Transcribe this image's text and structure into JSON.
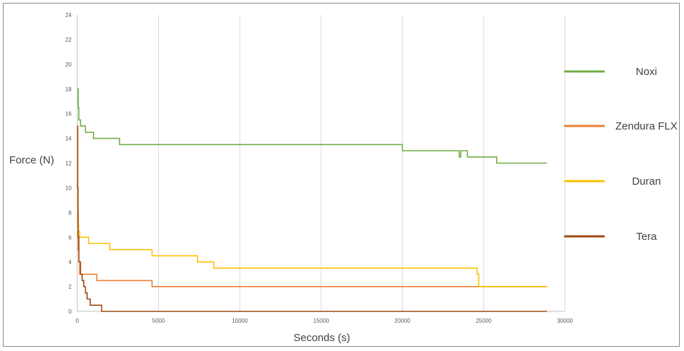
{
  "chart_data": {
    "type": "line",
    "title": "",
    "xlabel": "Seconds (s)",
    "ylabel": "Force (N)",
    "xlim": [
      0,
      30000
    ],
    "ylim": [
      0,
      24
    ],
    "xticks": [
      0,
      5000,
      10000,
      15000,
      20000,
      25000,
      30000
    ],
    "yticks": [
      0,
      2,
      4,
      6,
      8,
      10,
      12,
      14,
      16,
      18,
      20,
      22,
      24
    ],
    "grid": "vertical",
    "legend_position": "right",
    "series": [
      {
        "name": "Noxi",
        "color": "#70ad47",
        "x": [
          0,
          60,
          100,
          200,
          400,
          500,
          1000,
          2500,
          2600,
          7200,
          20000,
          23100,
          23500,
          23600,
          24000,
          25000,
          25800,
          28900
        ],
        "y": [
          18,
          16.5,
          15.5,
          15,
          15,
          14.5,
          14,
          14,
          13.5,
          13.5,
          13,
          13,
          12.5,
          13,
          12.5,
          12.5,
          12,
          12
        ]
      },
      {
        "name": "Zendura FLX",
        "color": "#ed7d31",
        "x": [
          0,
          30,
          60,
          100,
          150,
          300,
          800,
          1000,
          1200,
          4200,
          4600,
          28900
        ],
        "y": [
          15,
          8,
          5,
          4,
          3,
          3,
          3,
          3,
          2.5,
          2.5,
          2,
          2
        ]
      },
      {
        "name": "Duran",
        "color": "#ffc000",
        "x": [
          0,
          30,
          80,
          150,
          600,
          700,
          1900,
          2000,
          4400,
          4600,
          6800,
          7400,
          7900,
          8400,
          20000,
          24600,
          24700,
          28900
        ],
        "y": [
          10,
          7,
          6.5,
          6,
          6,
          5.5,
          5.5,
          5,
          5,
          4.5,
          4.5,
          4,
          4,
          3.5,
          3.5,
          3,
          2,
          2
        ]
      },
      {
        "name": "Tera",
        "color": "#9e480e",
        "x": [
          0,
          20,
          50,
          100,
          200,
          300,
          400,
          500,
          600,
          800,
          1300,
          1500,
          28900
        ],
        "y": [
          15,
          10,
          6,
          4,
          3,
          2.5,
          2,
          1.5,
          1,
          0.5,
          0.5,
          0,
          0
        ]
      }
    ]
  }
}
